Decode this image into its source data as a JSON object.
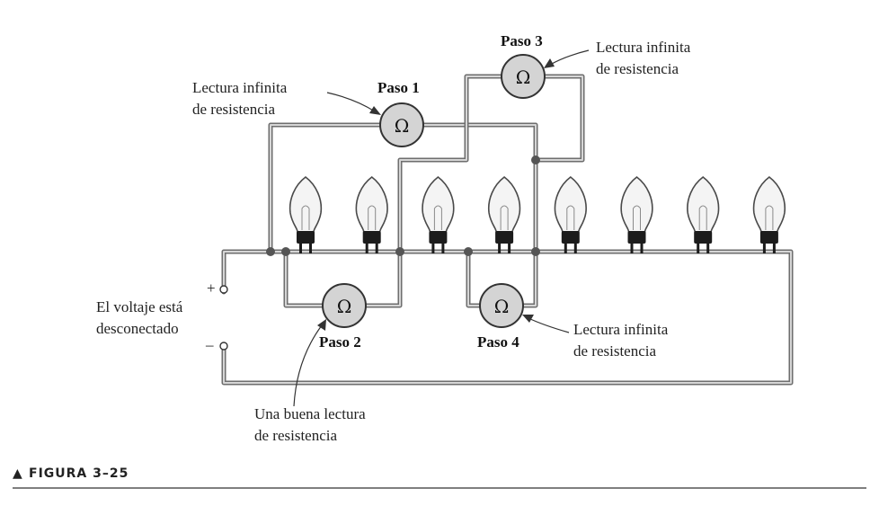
{
  "figure": {
    "caption_marker": "▲",
    "caption": "FIGURA 3–25"
  },
  "source": {
    "plus_sign": "+",
    "minus_sign": "–",
    "label_line1": "El voltaje está",
    "label_line2": "desconectado"
  },
  "meters": [
    {
      "symbol": "Ω",
      "step": "Paso 1"
    },
    {
      "symbol": "Ω",
      "step": "Paso 2"
    },
    {
      "symbol": "Ω",
      "step": "Paso 3"
    },
    {
      "symbol": "Ω",
      "step": "Paso 4"
    }
  ],
  "callouts": {
    "step1": {
      "line1": "Lectura infinita",
      "line2": "de resistencia"
    },
    "step2": {
      "line1": "Una buena lectura",
      "line2": "de resistencia"
    },
    "step3": {
      "line1": "Lectura infinita",
      "line2": "de resistencia"
    },
    "step4": {
      "line1": "Lectura infinita",
      "line2": "de resistencia"
    }
  },
  "bulbs": {
    "count": 8,
    "icon": "bulb-icon"
  },
  "colors": {
    "wire": "#6e6e6e",
    "meter": "#d4d4d4",
    "bulb_base": "#1c1c1c"
  }
}
